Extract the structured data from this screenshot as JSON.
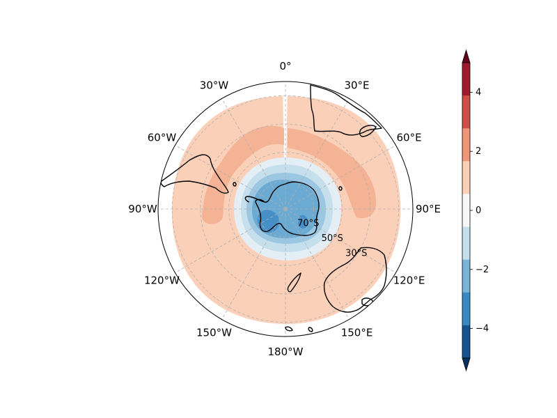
{
  "map": {
    "projection": "south-polar-stereographic",
    "longitude_labels": [
      {
        "lon": 0,
        "text": "0°"
      },
      {
        "lon": 30,
        "text": "30°E"
      },
      {
        "lon": 60,
        "text": "60°E"
      },
      {
        "lon": 90,
        "text": "90°E"
      },
      {
        "lon": 120,
        "text": "120°E"
      },
      {
        "lon": 150,
        "text": "150°E"
      },
      {
        "lon": 180,
        "text": "180°W"
      },
      {
        "lon": -150,
        "text": "150°W"
      },
      {
        "lon": -120,
        "text": "120°W"
      },
      {
        "lon": -90,
        "text": "90°W"
      },
      {
        "lon": -60,
        "text": "60°W"
      },
      {
        "lon": -30,
        "text": "30°W"
      }
    ],
    "latitude_labels": [
      {
        "lat": -70,
        "text": "70°S"
      },
      {
        "lat": -50,
        "text": "50°S"
      },
      {
        "lat": -30,
        "text": "30°S"
      }
    ],
    "gridlines": true
  },
  "colorbar": {
    "ticks": [
      "4",
      "2",
      "0",
      "−2",
      "−4"
    ],
    "levels": [
      -5,
      -4,
      -3,
      -2,
      -1,
      1,
      2,
      3,
      4,
      5
    ],
    "extend": "both",
    "colors": {
      "max_extend": "#67001f",
      "l4_5": "#9e1a2c",
      "l3_4": "#cf4f46",
      "l2_3": "#ee9677",
      "l1_2": "#fbd0b9",
      "lm1_1": "#f7f7f7",
      "lm2_m1": "#c6dfed",
      "lm3_m2": "#7ab4d6",
      "lm4_m3": "#3a88c0",
      "lm5_m4": "#175290",
      "min_extend": "#053061"
    }
  }
}
